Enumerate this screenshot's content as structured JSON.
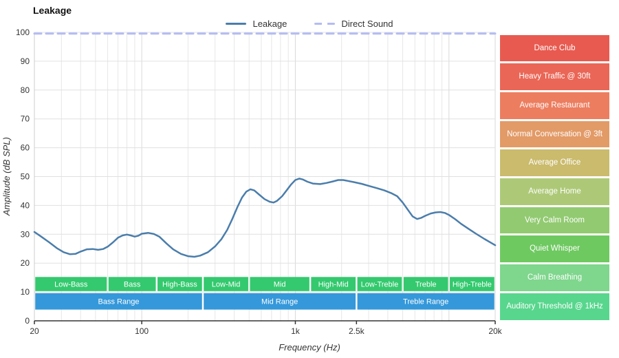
{
  "title": "Leakage",
  "legend": [
    {
      "label": "Leakage",
      "color": "#4a7dab",
      "dash": false
    },
    {
      "label": "Direct Sound",
      "color": "#b4bcf4",
      "dash": true
    }
  ],
  "chart_data": {
    "type": "line",
    "title": "Leakage",
    "xlabel": "Frequency (Hz)",
    "ylabel": "Amplitude (dB SPL)",
    "x_scale": "log",
    "xlim": [
      20,
      20000
    ],
    "ylim": [
      0,
      100
    ],
    "y_ticks": [
      0,
      10,
      20,
      30,
      40,
      50,
      60,
      70,
      80,
      90,
      100
    ],
    "x_tick_labels": [
      {
        "value": 20,
        "label": "20"
      },
      {
        "value": 100,
        "label": "100"
      },
      {
        "value": 1000,
        "label": "1k"
      },
      {
        "value": 2500,
        "label": "2.5k"
      },
      {
        "value": 20000,
        "label": "20k"
      }
    ],
    "grid": true,
    "legend_position": "top",
    "series": [
      {
        "name": "Leakage",
        "color": "#4a7dab",
        "dash": false,
        "width": 2.5,
        "points": [
          [
            20,
            30.8
          ],
          [
            22,
            29.3
          ],
          [
            25,
            27.2
          ],
          [
            28,
            25.2
          ],
          [
            31,
            23.8
          ],
          [
            34,
            23.1
          ],
          [
            37,
            23.2
          ],
          [
            40,
            24.0
          ],
          [
            44,
            24.8
          ],
          [
            48,
            24.9
          ],
          [
            52,
            24.6
          ],
          [
            56,
            24.9
          ],
          [
            60,
            25.7
          ],
          [
            65,
            27.2
          ],
          [
            70,
            28.8
          ],
          [
            75,
            29.6
          ],
          [
            80,
            29.9
          ],
          [
            85,
            29.6
          ],
          [
            90,
            29.2
          ],
          [
            95,
            29.5
          ],
          [
            100,
            30.2
          ],
          [
            110,
            30.5
          ],
          [
            120,
            30.1
          ],
          [
            130,
            29.2
          ],
          [
            145,
            26.8
          ],
          [
            160,
            24.8
          ],
          [
            180,
            23.2
          ],
          [
            200,
            22.4
          ],
          [
            220,
            22.2
          ],
          [
            240,
            22.6
          ],
          [
            270,
            23.8
          ],
          [
            300,
            25.8
          ],
          [
            330,
            28.3
          ],
          [
            360,
            31.5
          ],
          [
            390,
            35.5
          ],
          [
            420,
            39.5
          ],
          [
            450,
            42.8
          ],
          [
            480,
            44.8
          ],
          [
            510,
            45.6
          ],
          [
            540,
            45.2
          ],
          [
            580,
            43.8
          ],
          [
            630,
            42.2
          ],
          [
            680,
            41.3
          ],
          [
            720,
            41.0
          ],
          [
            760,
            41.6
          ],
          [
            820,
            43.2
          ],
          [
            880,
            45.3
          ],
          [
            940,
            47.3
          ],
          [
            1000,
            48.8
          ],
          [
            1060,
            49.3
          ],
          [
            1120,
            49.0
          ],
          [
            1200,
            48.2
          ],
          [
            1300,
            47.6
          ],
          [
            1450,
            47.4
          ],
          [
            1600,
            47.8
          ],
          [
            1750,
            48.3
          ],
          [
            1900,
            48.8
          ],
          [
            2050,
            48.8
          ],
          [
            2200,
            48.5
          ],
          [
            2400,
            48.1
          ],
          [
            2700,
            47.5
          ],
          [
            3000,
            46.8
          ],
          [
            3400,
            46.0
          ],
          [
            3800,
            45.2
          ],
          [
            4200,
            44.3
          ],
          [
            4600,
            43.2
          ],
          [
            5000,
            41.0
          ],
          [
            5400,
            38.5
          ],
          [
            5800,
            36.2
          ],
          [
            6200,
            35.3
          ],
          [
            6600,
            35.7
          ],
          [
            7000,
            36.4
          ],
          [
            7600,
            37.2
          ],
          [
            8200,
            37.6
          ],
          [
            8800,
            37.7
          ],
          [
            9400,
            37.4
          ],
          [
            10000,
            36.7
          ],
          [
            11000,
            35.2
          ],
          [
            12000,
            33.6
          ],
          [
            13500,
            31.8
          ],
          [
            15000,
            30.2
          ],
          [
            17000,
            28.4
          ],
          [
            20000,
            26.2
          ]
        ]
      },
      {
        "name": "Direct Sound",
        "color": "#b4bcf4",
        "dash": true,
        "width": 3,
        "points": [
          [
            20,
            99.6
          ],
          [
            20000,
            99.6
          ]
        ]
      }
    ],
    "sub_bands": [
      {
        "label": "Low-Bass",
        "from": 20,
        "to": 60
      },
      {
        "label": "Bass",
        "from": 60,
        "to": 125
      },
      {
        "label": "High-Bass",
        "from": 125,
        "to": 250
      },
      {
        "label": "Low-Mid",
        "from": 250,
        "to": 500
      },
      {
        "label": "Mid",
        "from": 500,
        "to": 1250
      },
      {
        "label": "High-Mid",
        "from": 1250,
        "to": 2500
      },
      {
        "label": "Low-Treble",
        "from": 2500,
        "to": 5000
      },
      {
        "label": "Treble",
        "from": 5000,
        "to": 10000
      },
      {
        "label": "High-Treble",
        "from": 10000,
        "to": 20000
      }
    ],
    "range_bands": [
      {
        "label": "Bass Range",
        "from": 20,
        "to": 250
      },
      {
        "label": "Mid Range",
        "from": 250,
        "to": 2500
      },
      {
        "label": "Treble Range",
        "from": 2500,
        "to": 20000
      }
    ],
    "band_colors": {
      "sub": "#34c96e",
      "range": "#3598da"
    }
  },
  "noise_levels": [
    {
      "label": "Dance Club",
      "color": "#e85a50"
    },
    {
      "label": "Heavy Traffic @ 30ft",
      "color": "#ea6656"
    },
    {
      "label": "Average Restaurant",
      "color": "#ec7d5f"
    },
    {
      "label": "Normal Conversation @ 3ft",
      "color": "#e29a67"
    },
    {
      "label": "Average Office",
      "color": "#cabb6d"
    },
    {
      "label": "Average Home",
      "color": "#adc978"
    },
    {
      "label": "Very Calm Room",
      "color": "#92ca71"
    },
    {
      "label": "Quiet Whisper",
      "color": "#6fc961"
    },
    {
      "label": "Calm Breathing",
      "color": "#7fd68d"
    },
    {
      "label": "Auditory Threshold @ 1kHz",
      "color": "#58d68d"
    }
  ]
}
